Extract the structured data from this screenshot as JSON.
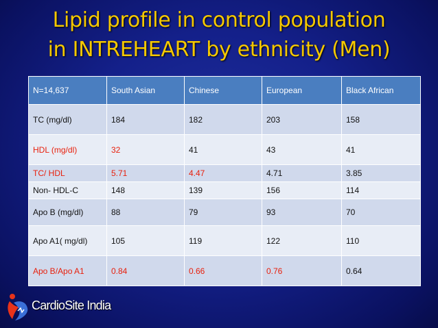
{
  "slide": {
    "title_line1": "Lipid profile in control population",
    "title_line2": "in INTREHEART by ethnicity (Men)"
  },
  "table": {
    "headers": [
      "N=14,637",
      "South Asian",
      "Chinese",
      "European",
      "Black African"
    ],
    "rows": [
      {
        "label": "TC (mg/dl)",
        "values": [
          "184",
          "182",
          "203",
          "158"
        ]
      },
      {
        "label": "HDL (mg/dl)",
        "values": [
          "32",
          "41",
          "43",
          "41"
        ]
      },
      {
        "label": "TC/ HDL",
        "values": [
          "5.71",
          "4.47",
          "4.71",
          "3.85"
        ]
      },
      {
        "label": "Non- HDL-C",
        "values": [
          "148",
          "139",
          "156",
          "114"
        ]
      },
      {
        "label": "Apo B (mg/dl)",
        "values": [
          "88",
          "79",
          "93",
          "70"
        ]
      },
      {
        "label": "Apo A1( mg/dl)",
        "values": [
          "105",
          "119",
          "122",
          "110"
        ]
      },
      {
        "label": "Apo B/Apo A1",
        "values": [
          "0.84",
          "0.66",
          "0.76",
          "0.64"
        ]
      }
    ]
  },
  "colors": {
    "title": "#f5c800",
    "header_bg": "#4a7ec0",
    "highlight_red": "#e8200c"
  },
  "logo": {
    "text": "CardioSite India",
    "icon": "heart-figure-icon"
  }
}
